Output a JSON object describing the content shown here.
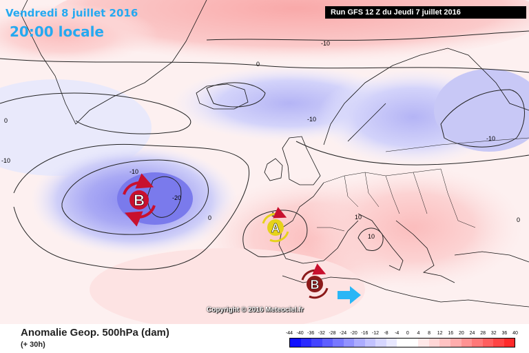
{
  "header": {
    "date": "Vendredi 8 juillet 2016",
    "local_time": "20:00 locale",
    "run_info": "Run GFS 12 Z du Jeudi 7 juillet 2016"
  },
  "map": {
    "copyright": "Copyright © 2016 Meteociel.fr",
    "contour_labels": [
      "-10",
      "0",
      "-10",
      "-10",
      "-10",
      "-20",
      "0",
      "-10",
      "0",
      "10",
      "10",
      "10",
      "0"
    ],
    "pressure_systems": [
      {
        "letter": "B",
        "type": "low",
        "color": "#c8102e"
      },
      {
        "letter": "A",
        "type": "high",
        "color": "#e6d21a"
      },
      {
        "letter": "B",
        "type": "low",
        "color": "#8b1a1a"
      }
    ],
    "arrow_color": "#29b6f6",
    "ocean_tint": "#ffffff"
  },
  "footer": {
    "title": "Anomalie Geop. 500hPa (dam)",
    "forecast_hour": "(+ 30h)"
  },
  "legend": {
    "ticks": [
      "-44",
      "-40",
      "-36",
      "-32",
      "-28",
      "-24",
      "-20",
      "-16",
      "-12",
      "-8",
      "-4",
      "0",
      "4",
      "8",
      "12",
      "16",
      "20",
      "24",
      "28",
      "32",
      "36",
      "40"
    ],
    "colors": [
      "#1010ff",
      "#2a2aff",
      "#4444ff",
      "#5e5eff",
      "#7878ff",
      "#9292ff",
      "#acacff",
      "#c2c2ff",
      "#d6d6ff",
      "#e8e8ff",
      "#ffffff",
      "#ffffff",
      "#ffe8e8",
      "#ffd6d6",
      "#ffc2c2",
      "#ffacac",
      "#ff9292",
      "#ff7878",
      "#ff5e5e",
      "#ff4444",
      "#ff2a2a"
    ]
  }
}
